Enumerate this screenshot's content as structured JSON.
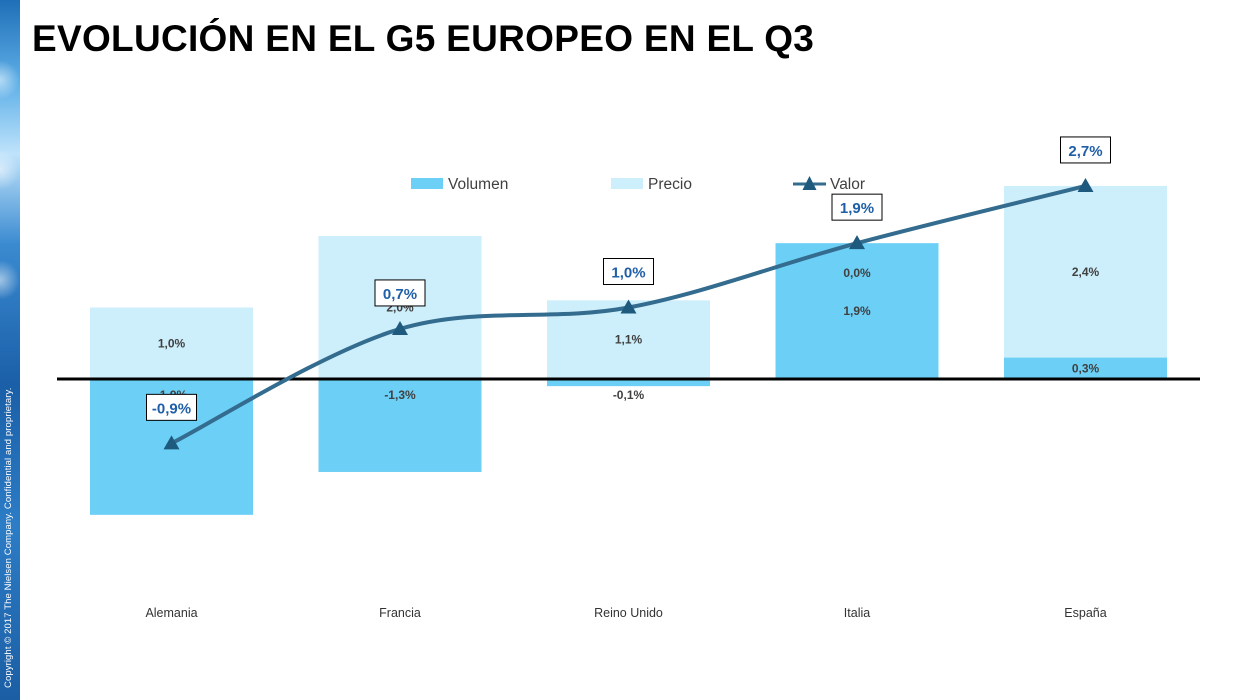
{
  "slide": {
    "title": "EVOLUCIÓN EN EL G5 EUROPEO EN EL Q3",
    "copyright": "Copyright © 2017 The Nielsen Company. Confidential and proprietary."
  },
  "chart_data": {
    "type": "bar",
    "stacked": true,
    "title": "",
    "xlabel": "",
    "ylabel": "",
    "categories": [
      "Alemania",
      "Francia",
      "Reino Unido",
      "Italia",
      "España"
    ],
    "series": [
      {
        "name": "Volumen",
        "type": "bar",
        "values": [
          -1.9,
          -1.3,
          -0.1,
          1.9,
          0.3
        ],
        "labels": [
          "-1,9%",
          "-1,3%",
          "-0,1%",
          "1,9%",
          "0,3%"
        ],
        "color": "#6ccff6"
      },
      {
        "name": "Precio",
        "type": "bar",
        "values": [
          1.0,
          2.0,
          1.1,
          0.0,
          2.4
        ],
        "labels": [
          "1,0%",
          "2,0%",
          "1,1%",
          "0,0%",
          "2,4%"
        ],
        "color": "#cdeefb"
      },
      {
        "name": "Valor",
        "type": "line",
        "marker": "triangle",
        "values": [
          -0.9,
          0.7,
          1.0,
          1.9,
          2.7
        ],
        "labels": [
          "-0,9%",
          "0,7%",
          "1,0%",
          "1,9%",
          "2,7%"
        ],
        "color": "#336c8e",
        "label_color": "#1f5fa8"
      }
    ],
    "legend_position": "top",
    "grid": false,
    "axis_line_color": "#000000"
  }
}
